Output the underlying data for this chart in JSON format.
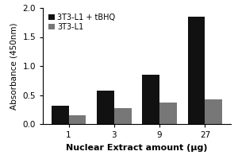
{
  "categories": [
    1,
    3,
    9,
    27
  ],
  "series": [
    {
      "label": "3T3-L1 + tBHQ",
      "color": "#111111",
      "values": [
        0.32,
        0.57,
        0.85,
        1.85
      ]
    },
    {
      "label": "3T3-L1",
      "color": "#777777",
      "values": [
        0.15,
        0.27,
        0.37,
        0.43
      ]
    }
  ],
  "xlabel": "Nuclear Extract amount (μg)",
  "ylabel": "Absorbance (450nm)",
  "ylim": [
    0,
    2.0
  ],
  "yticks": [
    0.0,
    0.5,
    1.0,
    1.5,
    2.0
  ],
  "xtick_labels": [
    "1",
    "3",
    "9",
    "27"
  ],
  "bar_width": 0.38,
  "legend_loc": "upper left",
  "background_color": "#ffffff"
}
